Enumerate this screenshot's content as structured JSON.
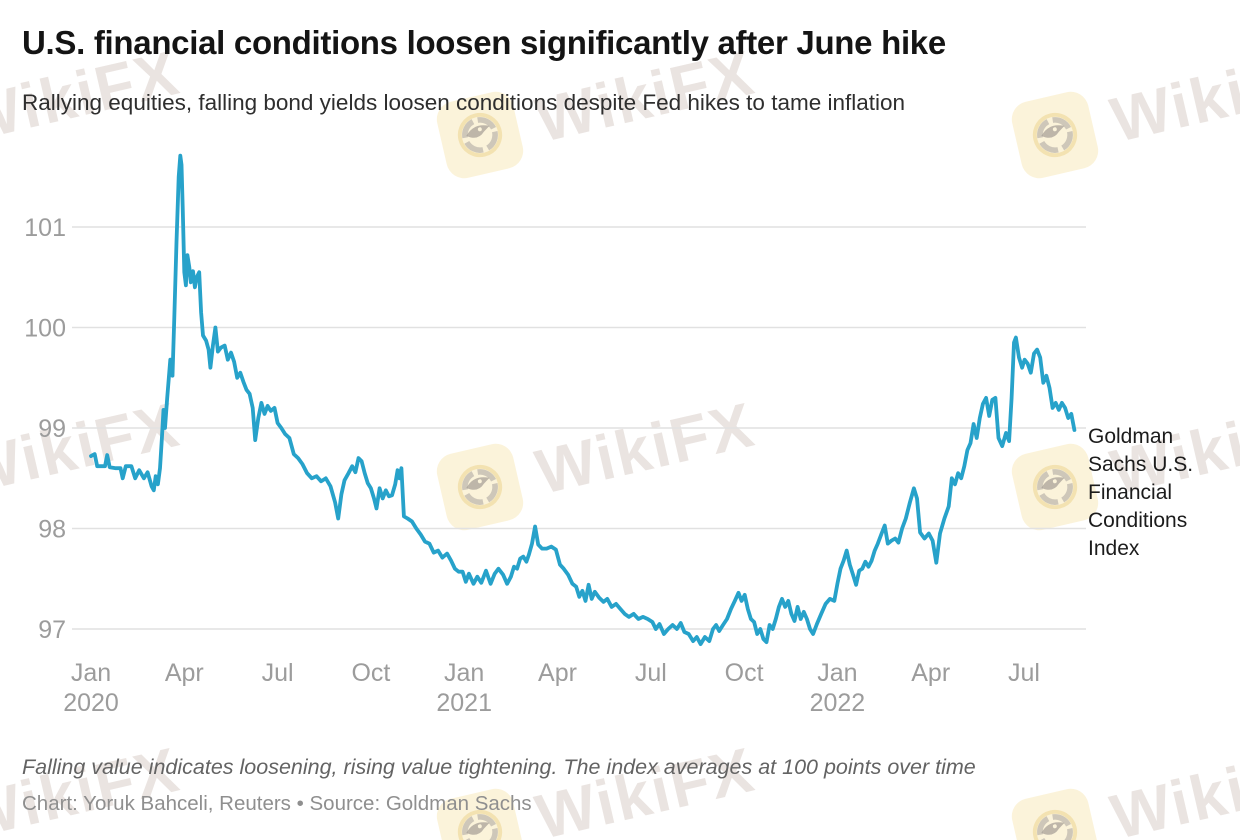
{
  "header": {
    "title": "U.S. financial conditions loosen significantly after June hike",
    "subtitle": "Rallying equities, falling bond yields loosen conditions despite Fed hikes to tame inflation"
  },
  "chart_data": {
    "type": "line",
    "title": "U.S. financial conditions loosen significantly after June hike",
    "series_label": "Goldman Sachs U.S. Financial Conditions Index",
    "line_color": "#27a2ca",
    "grid_color": "#e1e1e1",
    "axis_text_color": "#9c9c9c",
    "grid_on": true,
    "legend_position": "right-of-line-end",
    "ylim": [
      96.7,
      101.85
    ],
    "y_axis": {
      "ticks": [
        101,
        100,
        99,
        98,
        97
      ]
    },
    "x_axis": {
      "unit": "months since Jan 2020",
      "ticks": [
        {
          "m": 0,
          "label": "Jan",
          "year": "2020"
        },
        {
          "m": 3,
          "label": "Apr"
        },
        {
          "m": 6,
          "label": "Jul"
        },
        {
          "m": 9,
          "label": "Oct"
        },
        {
          "m": 12,
          "label": "Jan",
          "year": "2021"
        },
        {
          "m": 15,
          "label": "Apr"
        },
        {
          "m": 18,
          "label": "Jul"
        },
        {
          "m": 21,
          "label": "Oct"
        },
        {
          "m": 24,
          "label": "Jan",
          "year": "2022"
        },
        {
          "m": 27,
          "label": "Apr"
        },
        {
          "m": 30,
          "label": "Jul"
        }
      ]
    },
    "series": [
      {
        "name": "Goldman Sachs U.S. Financial Conditions Index",
        "points": [
          [
            0,
            98.72
          ],
          [
            0.12,
            98.74
          ],
          [
            0.2,
            98.62
          ],
          [
            0.45,
            98.62
          ],
          [
            0.52,
            98.73
          ],
          [
            0.6,
            98.61
          ],
          [
            0.8,
            98.6
          ],
          [
            0.95,
            98.6
          ],
          [
            1.02,
            98.5
          ],
          [
            1.12,
            98.62
          ],
          [
            1.3,
            98.62
          ],
          [
            1.42,
            98.5
          ],
          [
            1.55,
            98.58
          ],
          [
            1.7,
            98.5
          ],
          [
            1.82,
            98.56
          ],
          [
            1.95,
            98.42
          ],
          [
            2.02,
            98.38
          ],
          [
            2.08,
            98.52
          ],
          [
            2.15,
            98.44
          ],
          [
            2.22,
            98.6
          ],
          [
            2.28,
            98.9
          ],
          [
            2.33,
            99.18
          ],
          [
            2.38,
            99.0
          ],
          [
            2.45,
            99.3
          ],
          [
            2.55,
            99.68
          ],
          [
            2.62,
            99.52
          ],
          [
            2.68,
            100.1
          ],
          [
            2.75,
            100.85
          ],
          [
            2.82,
            101.5
          ],
          [
            2.87,
            101.71
          ],
          [
            2.91,
            101.62
          ],
          [
            2.95,
            101.2
          ],
          [
            3.0,
            100.55
          ],
          [
            3.05,
            100.42
          ],
          [
            3.1,
            100.72
          ],
          [
            3.16,
            100.6
          ],
          [
            3.21,
            100.45
          ],
          [
            3.28,
            100.56
          ],
          [
            3.34,
            100.4
          ],
          [
            3.4,
            100.5
          ],
          [
            3.48,
            100.55
          ],
          [
            3.54,
            100.15
          ],
          [
            3.6,
            99.92
          ],
          [
            3.7,
            99.87
          ],
          [
            3.78,
            99.78
          ],
          [
            3.84,
            99.6
          ],
          [
            3.92,
            99.82
          ],
          [
            4.0,
            100.0
          ],
          [
            4.08,
            99.76
          ],
          [
            4.18,
            99.8
          ],
          [
            4.3,
            99.82
          ],
          [
            4.4,
            99.68
          ],
          [
            4.5,
            99.75
          ],
          [
            4.6,
            99.66
          ],
          [
            4.7,
            99.5
          ],
          [
            4.8,
            99.55
          ],
          [
            4.9,
            99.46
          ],
          [
            5.0,
            99.38
          ],
          [
            5.1,
            99.34
          ],
          [
            5.2,
            99.2
          ],
          [
            5.28,
            98.88
          ],
          [
            5.38,
            99.1
          ],
          [
            5.48,
            99.25
          ],
          [
            5.58,
            99.14
          ],
          [
            5.68,
            99.22
          ],
          [
            5.78,
            99.17
          ],
          [
            5.9,
            99.2
          ],
          [
            6.0,
            99.05
          ],
          [
            6.12,
            99.0
          ],
          [
            6.24,
            98.94
          ],
          [
            6.38,
            98.9
          ],
          [
            6.52,
            98.74
          ],
          [
            6.66,
            98.7
          ],
          [
            6.8,
            98.64
          ],
          [
            6.95,
            98.55
          ],
          [
            7.1,
            98.5
          ],
          [
            7.25,
            98.52
          ],
          [
            7.4,
            98.47
          ],
          [
            7.55,
            98.5
          ],
          [
            7.7,
            98.42
          ],
          [
            7.85,
            98.26
          ],
          [
            7.95,
            98.1
          ],
          [
            8.05,
            98.34
          ],
          [
            8.15,
            98.48
          ],
          [
            8.28,
            98.55
          ],
          [
            8.4,
            98.62
          ],
          [
            8.5,
            98.56
          ],
          [
            8.6,
            98.7
          ],
          [
            8.7,
            98.67
          ],
          [
            8.8,
            98.55
          ],
          [
            8.9,
            98.45
          ],
          [
            9.0,
            98.4
          ],
          [
            9.1,
            98.3
          ],
          [
            9.18,
            98.2
          ],
          [
            9.28,
            98.4
          ],
          [
            9.38,
            98.3
          ],
          [
            9.48,
            98.38
          ],
          [
            9.58,
            98.32
          ],
          [
            9.68,
            98.33
          ],
          [
            9.78,
            98.44
          ],
          [
            9.86,
            98.58
          ],
          [
            9.92,
            98.5
          ],
          [
            9.98,
            98.6
          ],
          [
            10.06,
            98.12
          ],
          [
            10.18,
            98.1
          ],
          [
            10.32,
            98.07
          ],
          [
            10.46,
            98.0
          ],
          [
            10.6,
            97.94
          ],
          [
            10.74,
            97.87
          ],
          [
            10.88,
            97.85
          ],
          [
            11.02,
            97.76
          ],
          [
            11.16,
            97.78
          ],
          [
            11.3,
            97.71
          ],
          [
            11.45,
            97.75
          ],
          [
            11.58,
            97.68
          ],
          [
            11.7,
            97.6
          ],
          [
            11.82,
            97.57
          ],
          [
            11.95,
            97.57
          ],
          [
            12.05,
            97.47
          ],
          [
            12.15,
            97.55
          ],
          [
            12.3,
            97.45
          ],
          [
            12.42,
            97.52
          ],
          [
            12.55,
            97.46
          ],
          [
            12.7,
            97.58
          ],
          [
            12.85,
            97.45
          ],
          [
            12.98,
            97.55
          ],
          [
            13.1,
            97.6
          ],
          [
            13.25,
            97.54
          ],
          [
            13.38,
            97.45
          ],
          [
            13.5,
            97.52
          ],
          [
            13.6,
            97.62
          ],
          [
            13.7,
            97.6
          ],
          [
            13.8,
            97.7
          ],
          [
            13.9,
            97.72
          ],
          [
            14.0,
            97.67
          ],
          [
            14.08,
            97.74
          ],
          [
            14.18,
            97.85
          ],
          [
            14.28,
            98.02
          ],
          [
            14.38,
            97.84
          ],
          [
            14.5,
            97.8
          ],
          [
            14.65,
            97.8
          ],
          [
            14.8,
            97.82
          ],
          [
            14.95,
            97.79
          ],
          [
            15.08,
            97.64
          ],
          [
            15.2,
            97.6
          ],
          [
            15.34,
            97.54
          ],
          [
            15.48,
            97.45
          ],
          [
            15.6,
            97.42
          ],
          [
            15.7,
            97.32
          ],
          [
            15.8,
            97.38
          ],
          [
            15.9,
            97.28
          ],
          [
            16.0,
            97.44
          ],
          [
            16.1,
            97.3
          ],
          [
            16.2,
            97.37
          ],
          [
            16.34,
            97.31
          ],
          [
            16.48,
            97.27
          ],
          [
            16.6,
            97.3
          ],
          [
            16.74,
            97.22
          ],
          [
            16.88,
            97.25
          ],
          [
            17.02,
            97.2
          ],
          [
            17.16,
            97.15
          ],
          [
            17.3,
            97.12
          ],
          [
            17.45,
            97.15
          ],
          [
            17.6,
            97.1
          ],
          [
            17.75,
            97.12
          ],
          [
            17.9,
            97.1
          ],
          [
            18.05,
            97.07
          ],
          [
            18.16,
            97.0
          ],
          [
            18.28,
            97.05
          ],
          [
            18.42,
            96.95
          ],
          [
            18.56,
            97.0
          ],
          [
            18.7,
            97.04
          ],
          [
            18.84,
            97.0
          ],
          [
            18.96,
            97.06
          ],
          [
            19.08,
            96.97
          ],
          [
            19.22,
            96.95
          ],
          [
            19.36,
            96.88
          ],
          [
            19.48,
            96.92
          ],
          [
            19.6,
            96.85
          ],
          [
            19.74,
            96.92
          ],
          [
            19.88,
            96.88
          ],
          [
            20.0,
            97.0
          ],
          [
            20.1,
            97.04
          ],
          [
            20.2,
            96.98
          ],
          [
            20.32,
            97.04
          ],
          [
            20.45,
            97.1
          ],
          [
            20.58,
            97.2
          ],
          [
            20.7,
            97.28
          ],
          [
            20.82,
            97.36
          ],
          [
            20.92,
            97.28
          ],
          [
            21.02,
            97.34
          ],
          [
            21.12,
            97.2
          ],
          [
            21.22,
            97.1
          ],
          [
            21.32,
            97.07
          ],
          [
            21.42,
            96.95
          ],
          [
            21.52,
            97.0
          ],
          [
            21.62,
            96.9
          ],
          [
            21.72,
            96.87
          ],
          [
            21.82,
            97.04
          ],
          [
            21.92,
            97.0
          ],
          [
            22.02,
            97.1
          ],
          [
            22.12,
            97.22
          ],
          [
            22.22,
            97.3
          ],
          [
            22.32,
            97.22
          ],
          [
            22.42,
            97.28
          ],
          [
            22.52,
            97.15
          ],
          [
            22.62,
            97.08
          ],
          [
            22.72,
            97.22
          ],
          [
            22.82,
            97.1
          ],
          [
            22.92,
            97.17
          ],
          [
            23.02,
            97.1
          ],
          [
            23.12,
            97.0
          ],
          [
            23.22,
            96.95
          ],
          [
            23.34,
            97.05
          ],
          [
            23.48,
            97.15
          ],
          [
            23.62,
            97.25
          ],
          [
            23.76,
            97.3
          ],
          [
            23.9,
            97.28
          ],
          [
            24.0,
            97.45
          ],
          [
            24.1,
            97.6
          ],
          [
            24.2,
            97.68
          ],
          [
            24.3,
            97.78
          ],
          [
            24.4,
            97.64
          ],
          [
            24.5,
            97.54
          ],
          [
            24.6,
            97.44
          ],
          [
            24.7,
            97.58
          ],
          [
            24.8,
            97.6
          ],
          [
            24.9,
            97.67
          ],
          [
            25.0,
            97.62
          ],
          [
            25.1,
            97.68
          ],
          [
            25.2,
            97.78
          ],
          [
            25.3,
            97.85
          ],
          [
            25.42,
            97.95
          ],
          [
            25.52,
            98.03
          ],
          [
            25.62,
            97.85
          ],
          [
            25.74,
            97.88
          ],
          [
            25.86,
            97.9
          ],
          [
            25.96,
            97.86
          ],
          [
            26.08,
            98.0
          ],
          [
            26.2,
            98.1
          ],
          [
            26.33,
            98.26
          ],
          [
            26.46,
            98.4
          ],
          [
            26.56,
            98.3
          ],
          [
            26.66,
            97.96
          ],
          [
            26.8,
            97.9
          ],
          [
            26.94,
            97.95
          ],
          [
            27.06,
            97.88
          ],
          [
            27.18,
            97.66
          ],
          [
            27.3,
            97.95
          ],
          [
            27.44,
            98.1
          ],
          [
            27.58,
            98.22
          ],
          [
            27.68,
            98.5
          ],
          [
            27.78,
            98.44
          ],
          [
            27.88,
            98.55
          ],
          [
            27.98,
            98.5
          ],
          [
            28.08,
            98.62
          ],
          [
            28.18,
            98.78
          ],
          [
            28.28,
            98.85
          ],
          [
            28.38,
            99.04
          ],
          [
            28.48,
            98.9
          ],
          [
            28.58,
            99.1
          ],
          [
            28.68,
            99.24
          ],
          [
            28.78,
            99.3
          ],
          [
            28.88,
            99.12
          ],
          [
            28.98,
            99.28
          ],
          [
            29.08,
            99.3
          ],
          [
            29.18,
            98.9
          ],
          [
            29.3,
            98.82
          ],
          [
            29.42,
            98.95
          ],
          [
            29.52,
            98.87
          ],
          [
            29.6,
            99.3
          ],
          [
            29.68,
            99.85
          ],
          [
            29.74,
            99.9
          ],
          [
            29.84,
            99.7
          ],
          [
            29.94,
            99.6
          ],
          [
            30.02,
            99.68
          ],
          [
            30.12,
            99.64
          ],
          [
            30.22,
            99.55
          ],
          [
            30.32,
            99.74
          ],
          [
            30.42,
            99.78
          ],
          [
            30.52,
            99.7
          ],
          [
            30.62,
            99.45
          ],
          [
            30.72,
            99.52
          ],
          [
            30.82,
            99.4
          ],
          [
            30.92,
            99.2
          ],
          [
            31.02,
            99.25
          ],
          [
            31.12,
            99.18
          ],
          [
            31.22,
            99.25
          ],
          [
            31.32,
            99.2
          ],
          [
            31.42,
            99.1
          ],
          [
            31.52,
            99.14
          ],
          [
            31.62,
            98.98
          ]
        ]
      }
    ]
  },
  "footer": {
    "note": "Falling value indicates loosening, rising value tightening. The index averages at 100 points over time",
    "credit": "Chart: Yoruk Bahceli, Reuters • Source: Goldman Sachs"
  },
  "watermark": {
    "text": "WikiFX"
  }
}
